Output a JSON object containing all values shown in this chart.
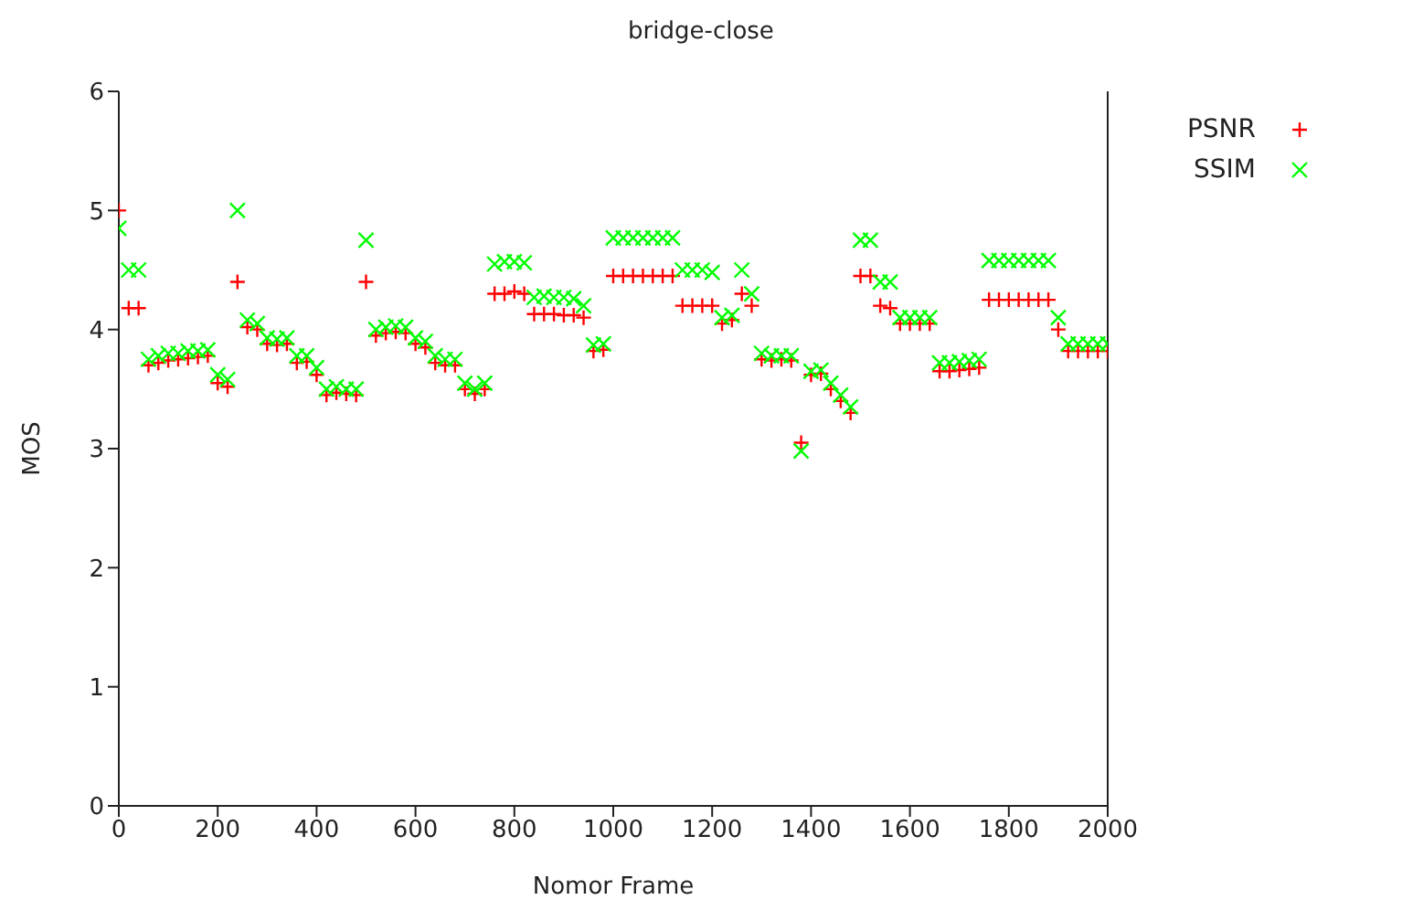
{
  "chart_data": {
    "type": "scatter",
    "title": "bridge-close",
    "xlabel": "Nomor Frame",
    "ylabel": "MOS",
    "x": [
      0,
      20,
      40,
      60,
      80,
      100,
      120,
      140,
      160,
      180,
      200,
      220,
      240,
      260,
      280,
      300,
      320,
      340,
      360,
      380,
      400,
      420,
      440,
      460,
      480,
      500,
      520,
      540,
      560,
      580,
      600,
      620,
      640,
      660,
      680,
      700,
      720,
      740,
      760,
      780,
      800,
      820,
      840,
      860,
      880,
      900,
      920,
      940,
      960,
      980,
      1000,
      1020,
      1040,
      1060,
      1080,
      1100,
      1120,
      1140,
      1160,
      1180,
      1200,
      1220,
      1240,
      1260,
      1280,
      1300,
      1320,
      1340,
      1360,
      1380,
      1400,
      1420,
      1440,
      1460,
      1480,
      1500,
      1520,
      1540,
      1560,
      1580,
      1600,
      1620,
      1640,
      1660,
      1680,
      1700,
      1720,
      1740,
      1760,
      1780,
      1800,
      1820,
      1840,
      1860,
      1880,
      1900,
      1920,
      1940,
      1960,
      1980,
      2000
    ],
    "series": [
      {
        "name": "PSNR",
        "color": "#ff0000",
        "values": [
          5.0,
          4.18,
          4.18,
          3.7,
          3.72,
          3.74,
          3.75,
          3.76,
          3.77,
          3.78,
          3.55,
          3.52,
          4.4,
          4.02,
          4.0,
          3.88,
          3.87,
          3.88,
          3.72,
          3.73,
          3.62,
          3.45,
          3.47,
          3.46,
          3.45,
          4.4,
          3.95,
          3.97,
          3.98,
          3.97,
          3.88,
          3.85,
          3.72,
          3.7,
          3.7,
          3.5,
          3.46,
          3.5,
          4.3,
          4.3,
          4.32,
          4.3,
          4.13,
          4.13,
          4.13,
          4.12,
          4.12,
          4.1,
          3.82,
          3.83,
          4.45,
          4.45,
          4.45,
          4.45,
          4.45,
          4.45,
          4.45,
          4.2,
          4.2,
          4.2,
          4.2,
          4.05,
          4.08,
          4.3,
          4.2,
          3.75,
          3.74,
          3.75,
          3.74,
          3.05,
          3.62,
          3.63,
          3.5,
          3.4,
          3.3,
          4.45,
          4.45,
          4.2,
          4.18,
          4.05,
          4.05,
          4.05,
          4.05,
          3.65,
          3.65,
          3.66,
          3.67,
          3.68,
          4.25,
          4.25,
          4.25,
          4.25,
          4.25,
          4.25,
          4.25,
          4.0,
          3.82,
          3.82,
          3.82,
          3.82,
          3.82
        ]
      },
      {
        "name": "SSIM",
        "color": "#00ff00",
        "values": [
          4.85,
          4.5,
          4.5,
          3.75,
          3.78,
          3.8,
          3.8,
          3.82,
          3.82,
          3.83,
          3.62,
          3.58,
          5.0,
          4.08,
          4.05,
          3.93,
          3.92,
          3.93,
          3.78,
          3.78,
          3.68,
          3.5,
          3.52,
          3.5,
          3.5,
          4.75,
          4.0,
          4.02,
          4.03,
          4.02,
          3.93,
          3.9,
          3.78,
          3.75,
          3.75,
          3.55,
          3.5,
          3.55,
          4.55,
          4.57,
          4.57,
          4.56,
          4.27,
          4.28,
          4.27,
          4.27,
          4.26,
          4.2,
          3.87,
          3.88,
          4.77,
          4.77,
          4.77,
          4.77,
          4.77,
          4.77,
          4.77,
          4.5,
          4.5,
          4.5,
          4.48,
          4.1,
          4.12,
          4.5,
          4.3,
          3.8,
          3.78,
          3.78,
          3.78,
          2.98,
          3.65,
          3.66,
          3.55,
          3.45,
          3.35,
          4.75,
          4.75,
          4.4,
          4.4,
          4.1,
          4.1,
          4.1,
          4.1,
          3.72,
          3.72,
          3.73,
          3.74,
          3.75,
          4.58,
          4.58,
          4.58,
          4.58,
          4.58,
          4.58,
          4.58,
          4.1,
          3.88,
          3.88,
          3.88,
          3.88,
          3.88
        ]
      }
    ],
    "xlim": [
      0,
      2000
    ],
    "xticks": [
      0,
      200,
      400,
      600,
      800,
      1000,
      1200,
      1400,
      1600,
      1800,
      2000
    ],
    "ylim": [
      0,
      6
    ],
    "yticks": [
      0,
      1,
      2,
      3,
      4,
      5,
      6
    ],
    "marker": "cross",
    "legend": "top right",
    "grid": false
  }
}
